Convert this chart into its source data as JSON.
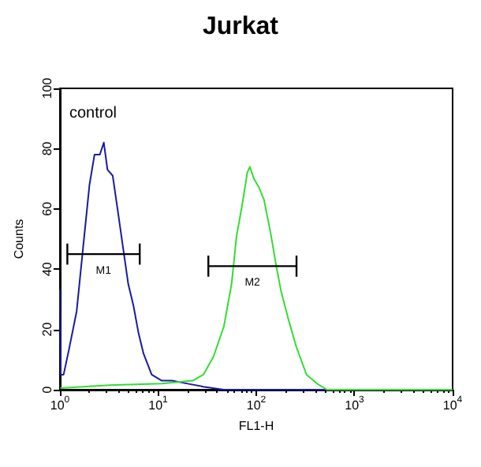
{
  "chart_data": {
    "type": "line",
    "title": "Jurkat",
    "xlabel": "FL1-H",
    "ylabel": "Counts",
    "log": "x",
    "grid": false,
    "legend": false,
    "marker": "none",
    "xlim": [
      1,
      10000
    ],
    "xticks": [
      {
        "value": 1,
        "label": "10$^{0}$"
      },
      {
        "value": 10,
        "label": "10$^{1}$"
      },
      {
        "value": 100,
        "label": "10$^{2}$"
      },
      {
        "value": 1000,
        "label": "10$^{3}$"
      },
      {
        "value": 10000,
        "label": "10$^{4}$"
      }
    ],
    "ylim": [
      0,
      100
    ],
    "yticks": [
      0,
      20,
      40,
      60,
      80,
      100
    ],
    "annotations": [
      "control"
    ],
    "series": [
      {
        "color": "#1a1aa0",
        "x": [
          1,
          1.02,
          1.09,
          1.23,
          1.48,
          1.77,
          2,
          2.25,
          2.55,
          2.8,
          3.05,
          3.45,
          3.9,
          4.4,
          4.97,
          5.6,
          6.3,
          7.1,
          8.6,
          10.9,
          13.9,
          20,
          28.9,
          46.8,
          417,
          10000
        ],
        "values": [
          33,
          5,
          5,
          13,
          26,
          51,
          68,
          78,
          78,
          82,
          73,
          71,
          59,
          47,
          35,
          28,
          19,
          12,
          5,
          3,
          3,
          2,
          1,
          0,
          0,
          0
        ]
      },
      {
        "color": "#33dd33",
        "x": [
          1.01,
          3.2,
          10.9,
          22.5,
          28.9,
          36.7,
          46.8,
          56,
          63,
          71.6,
          81,
          86,
          94.7,
          107,
          120,
          140,
          158,
          178,
          214,
          257,
          325,
          417,
          525,
          10000
        ],
        "values": [
          0.5,
          1.5,
          2,
          3,
          5,
          11,
          21,
          35,
          51,
          61,
          72,
          74,
          70,
          67,
          63,
          52,
          42,
          33,
          23,
          14,
          5,
          2,
          0,
          0
        ]
      },
      {
        "name": "M1",
        "type": "line",
        "color": "#000000",
        "x": [
          1.19,
          6.5
        ],
        "values": [
          45,
          45
        ],
        "errors": [
          3.5,
          3.5
        ]
      },
      {
        "name": "M2",
        "type": "line",
        "color": "#000000",
        "x": [
          32.5,
          257
        ],
        "values": [
          41,
          41
        ],
        "errors": [
          3.5,
          3.5
        ]
      }
    ]
  }
}
